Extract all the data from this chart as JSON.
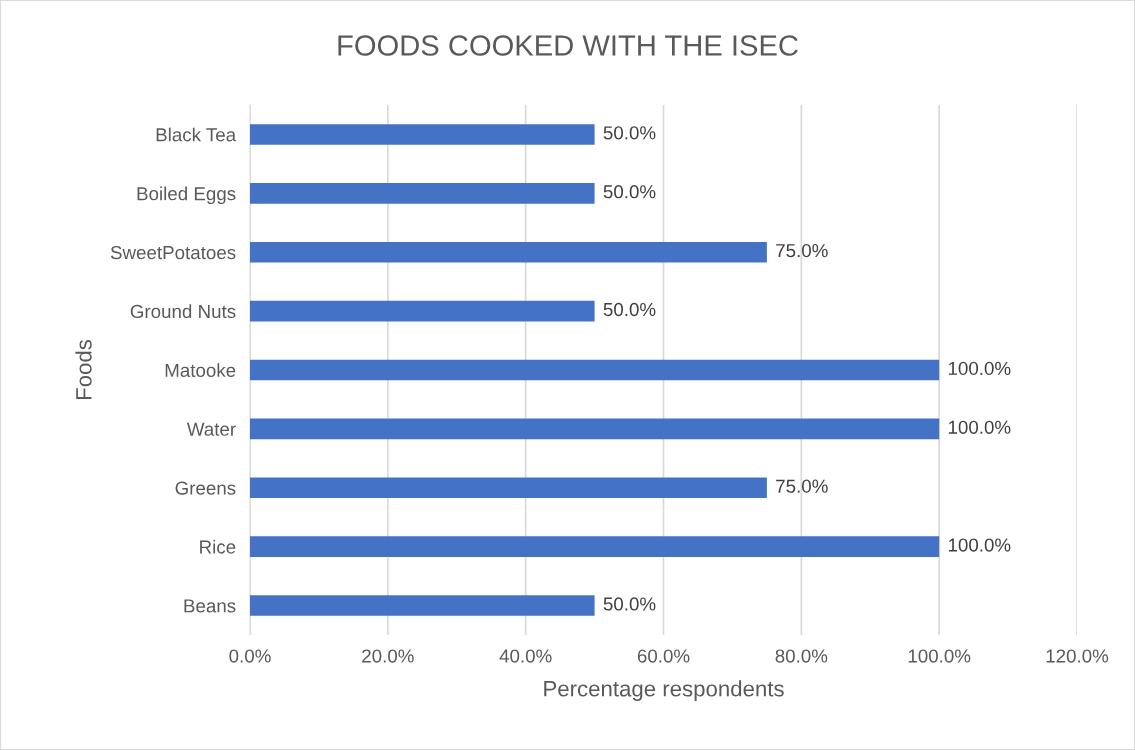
{
  "chart_data": {
    "type": "bar",
    "orientation": "horizontal",
    "title": "FOODS COOKED WITH THE ISEC",
    "xlabel": "Percentage respondents",
    "ylabel": "Foods",
    "categories": [
      "Black Tea",
      "Boiled Eggs",
      "SweetPotatoes",
      "Ground Nuts",
      "Matooke",
      "Water",
      "Greens",
      "Rice",
      "Beans"
    ],
    "values": [
      50,
      50,
      75,
      50,
      100,
      100,
      75,
      100,
      50
    ],
    "value_labels": [
      "50.0%",
      "50.0%",
      "75.0%",
      "50.0%",
      "100.0%",
      "100.0%",
      "75.0%",
      "100.0%",
      "50.0%"
    ],
    "color": "#4472c4",
    "xlim": [
      0,
      120
    ],
    "xticks": [
      {
        "value": 0,
        "label": "0.0%"
      },
      {
        "value": 20,
        "label": "20.0%"
      },
      {
        "value": 40,
        "label": "40.0%"
      },
      {
        "value": 60,
        "label": "60.0%"
      },
      {
        "value": 80,
        "label": "80.0%"
      },
      {
        "value": 100,
        "label": "100.0%"
      },
      {
        "value": 120,
        "label": "120.0%"
      }
    ],
    "grid": "x",
    "legend": false
  }
}
